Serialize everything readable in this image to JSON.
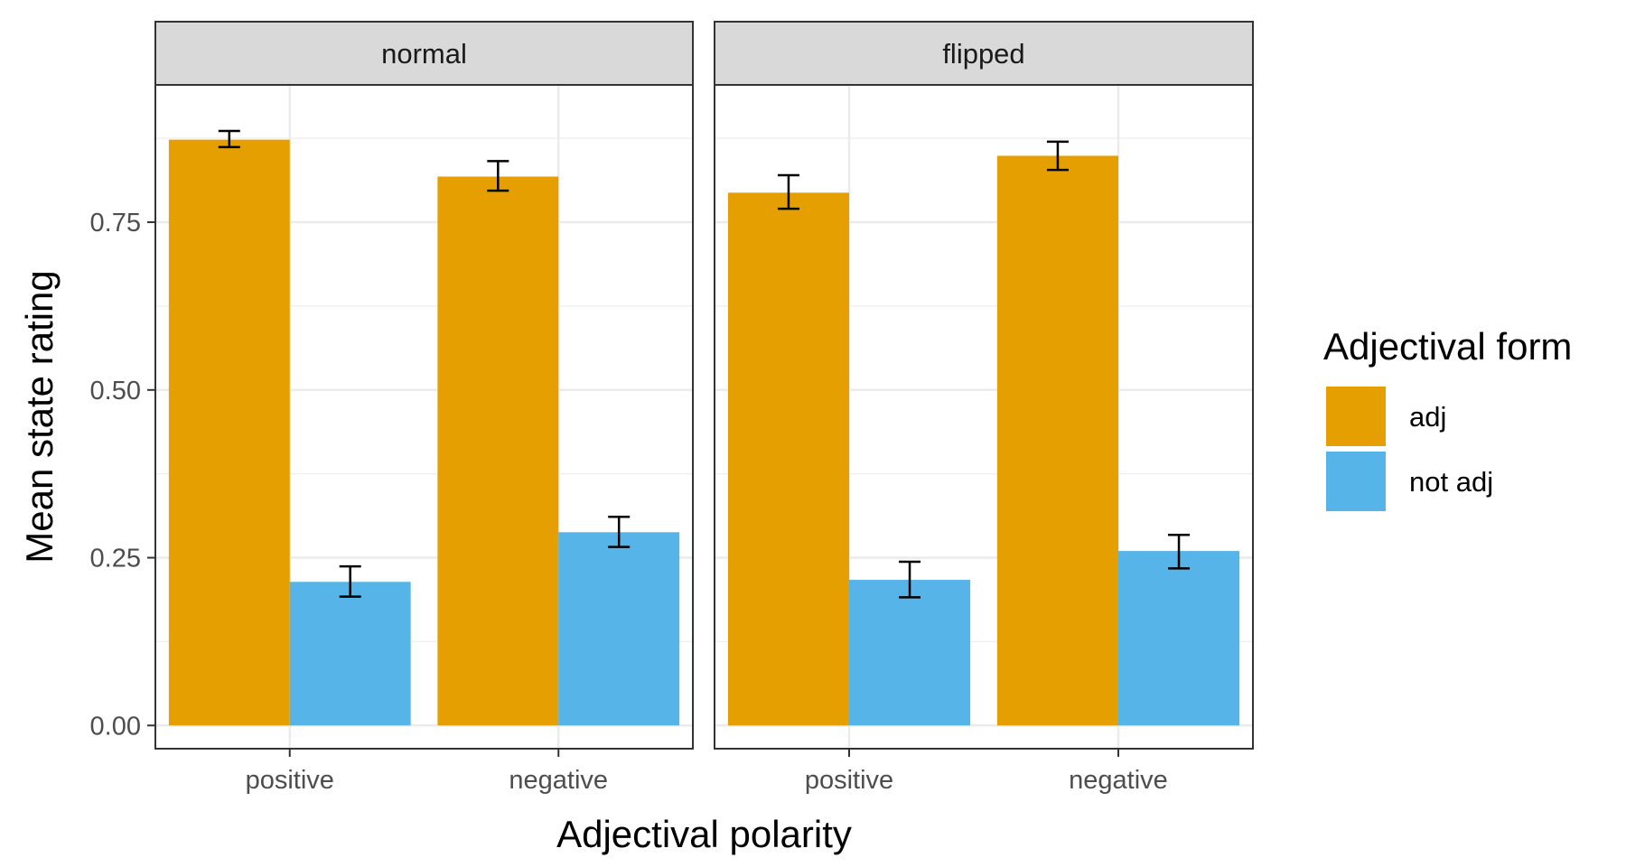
{
  "chart_data": {
    "type": "bar",
    "xlabel": "Adjectival polarity",
    "ylabel": "Mean state rating",
    "ylim": [
      0,
      0.92
    ],
    "yticks": [
      0,
      0.25,
      0.5,
      0.75
    ],
    "ytick_labels": [
      "0.00",
      "0.25",
      "0.50",
      "0.75"
    ],
    "grid": true,
    "legend_position": "right",
    "legend_title": "Adjectival form",
    "categories": [
      "positive",
      "negative"
    ],
    "series_names": [
      "adj",
      "not adj"
    ],
    "colors": {
      "adj": "#E69F00",
      "not adj": "#56B4E9"
    },
    "panels": [
      {
        "label": "normal",
        "series": [
          {
            "name": "adj",
            "values": [
              0.873,
              0.818
            ],
            "err_low": [
              0.862,
              0.797
            ],
            "err_high": [
              0.886,
              0.841
            ]
          },
          {
            "name": "not adj",
            "values": [
              0.214,
              0.288
            ],
            "err_low": [
              0.192,
              0.266
            ],
            "err_high": [
              0.237,
              0.311
            ]
          }
        ]
      },
      {
        "label": "flipped",
        "series": [
          {
            "name": "adj",
            "values": [
              0.794,
              0.849
            ],
            "err_low": [
              0.77,
              0.828
            ],
            "err_high": [
              0.82,
              0.87
            ]
          },
          {
            "name": "not adj",
            "values": [
              0.217,
              0.26
            ],
            "err_low": [
              0.191,
              0.234
            ],
            "err_high": [
              0.244,
              0.284
            ]
          }
        ]
      }
    ]
  }
}
